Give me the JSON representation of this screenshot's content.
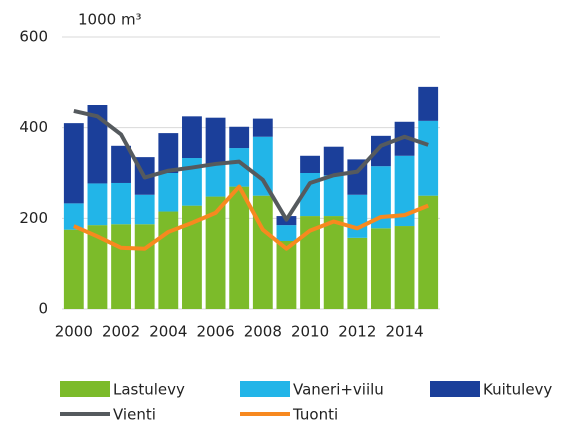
{
  "chart_data": {
    "type": "bar",
    "y_label": "1000 m³",
    "categories": [
      "2000",
      null,
      "2002",
      null,
      "2004",
      null,
      "2006",
      null,
      "2008",
      null,
      "2010",
      null,
      "2012",
      null,
      "2014",
      null
    ],
    "series": [
      {
        "name": "Lastulevy",
        "color": "#7cbb2a",
        "values": [
          175,
          185,
          187,
          187,
          215,
          228,
          248,
          270,
          250,
          150,
          205,
          205,
          157,
          178,
          183,
          250
        ]
      },
      {
        "name": "Vaneri+viilu",
        "color": "#22b5e8",
        "values": [
          58,
          92,
          91,
          65,
          85,
          105,
          72,
          85,
          130,
          35,
          95,
          90,
          95,
          137,
          155,
          165
        ]
      },
      {
        "name": "Kuitulevy",
        "color": "#1b3f9a",
        "values": [
          177,
          173,
          82,
          83,
          88,
          92,
          102,
          47,
          40,
          20,
          38,
          63,
          78,
          67,
          75,
          75
        ]
      }
    ],
    "lines": [
      {
        "name": "Vienti",
        "color": "#555a5e",
        "values": [
          437,
          425,
          385,
          290,
          305,
          312,
          320,
          325,
          285,
          197,
          278,
          295,
          303,
          360,
          380,
          362
        ]
      },
      {
        "name": "Tuonti",
        "color": "#f7891f",
        "values": [
          183,
          160,
          135,
          133,
          170,
          190,
          212,
          270,
          175,
          133,
          173,
          193,
          178,
          203,
          207,
          228
        ]
      }
    ],
    "ylim": [
      0,
      600
    ],
    "yticks": [
      0,
      200,
      400,
      600
    ],
    "grid": true,
    "stacked": true,
    "legend": "bottom"
  }
}
